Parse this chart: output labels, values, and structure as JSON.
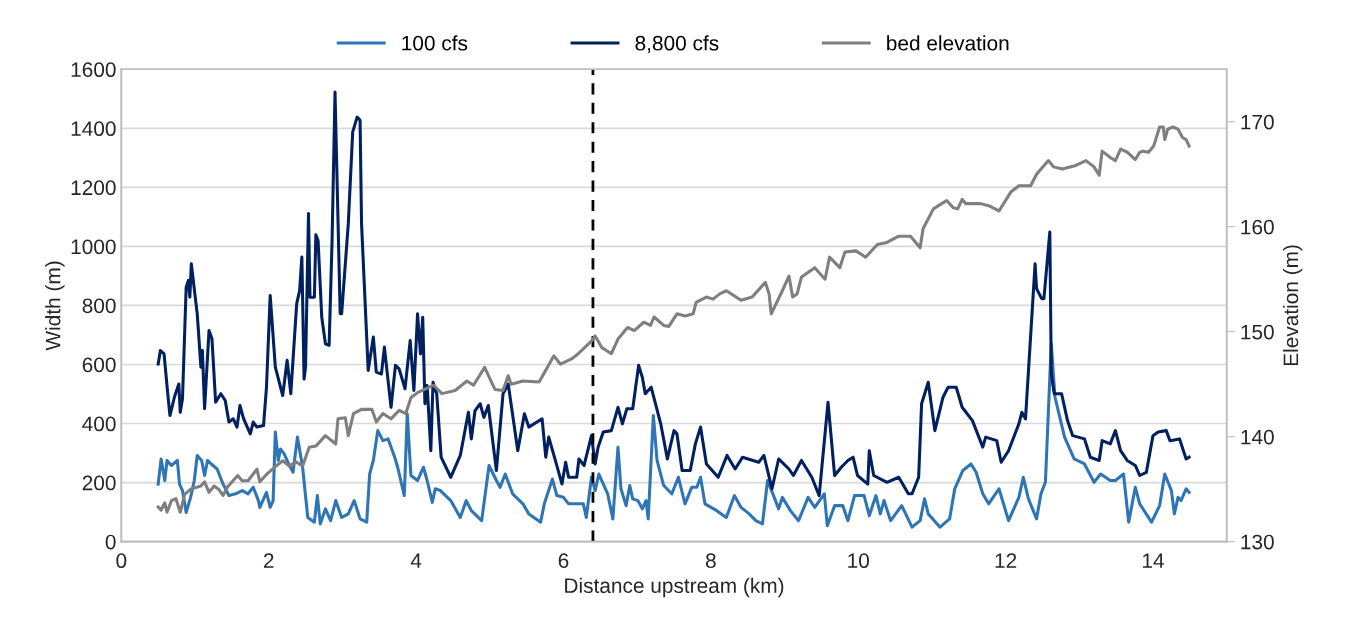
{
  "chart_data": {
    "type": "line",
    "xlabel": "Distance upstream (km)",
    "ylabel": "Width (m)",
    "y2label": "Elevation (m)",
    "xlim": [
      0,
      15
    ],
    "xticks": [
      0,
      2,
      4,
      6,
      8,
      10,
      12,
      14
    ],
    "ylim": [
      0,
      1600
    ],
    "yticks": [
      0,
      200,
      400,
      600,
      800,
      1000,
      1200,
      1400,
      1600
    ],
    "y2lim": [
      130,
      175
    ],
    "y2ticks": [
      130,
      140,
      150,
      160,
      170
    ],
    "grid": "y",
    "legend": "top",
    "line_style": "solid",
    "marker": "none",
    "ref_lines": [
      {
        "axis": "x",
        "value": 6.4,
        "color": "#000000",
        "line_style": "dashed"
      }
    ],
    "series": [
      {
        "name": "100 cfs",
        "color": "#2e75b6",
        "x": [
          0.5,
          0.54,
          0.59,
          0.62,
          0.68,
          0.76,
          0.79,
          0.83,
          0.88,
          0.94,
          0.99,
          1.03,
          1.09,
          1.13,
          1.17,
          1.22,
          1.3,
          1.38,
          1.46,
          1.55,
          1.64,
          1.72,
          1.79,
          1.86,
          1.88,
          1.97,
          2.02,
          2.06,
          2.09,
          2.13,
          2.16,
          2.21,
          2.26,
          2.33,
          2.39,
          2.46,
          2.53,
          2.62,
          2.66,
          2.7,
          2.77,
          2.84,
          2.91,
          2.99,
          3.08,
          3.16,
          3.24,
          3.33,
          3.37,
          3.42,
          3.48,
          3.55,
          3.62,
          3.71,
          3.75,
          3.84,
          3.88,
          3.93,
          4.02,
          4.1,
          4.15,
          4.22,
          4.26,
          4.33,
          4.47,
          4.6,
          4.68,
          4.75,
          4.89,
          4.99,
          5.09,
          5.14,
          5.21,
          5.31,
          5.45,
          5.53,
          5.69,
          5.74,
          5.85,
          5.91,
          6.0,
          6.07,
          6.18,
          6.27,
          6.31,
          6.38,
          6.43,
          6.48,
          6.6,
          6.67,
          6.74,
          6.78,
          6.85,
          6.9,
          6.94,
          7.01,
          7.07,
          7.12,
          7.15,
          7.22,
          7.27,
          7.36,
          7.47,
          7.56,
          7.65,
          7.74,
          7.81,
          7.86,
          7.92,
          8.08,
          8.21,
          8.32,
          8.41,
          8.52,
          8.61,
          8.7,
          8.77,
          8.86,
          8.92,
          8.97,
          9.08,
          9.19,
          9.32,
          9.41,
          9.54,
          9.58,
          9.68,
          9.79,
          9.86,
          9.95,
          10.08,
          10.15,
          10.24,
          10.3,
          10.35,
          10.44,
          10.59,
          10.73,
          10.84,
          10.9,
          10.95,
          11.11,
          11.24,
          11.31,
          11.42,
          11.53,
          11.6,
          11.69,
          11.77,
          11.91,
          12.04,
          12.18,
          12.24,
          12.31,
          12.42,
          12.48,
          12.54,
          12.6,
          12.62,
          12.67,
          12.8,
          12.93,
          13.07,
          13.2,
          13.29,
          13.42,
          13.49,
          13.6,
          13.67,
          13.76,
          13.82,
          13.98,
          14.09,
          14.16,
          14.25,
          14.29,
          14.34,
          14.38,
          14.45,
          14.49
        ],
        "values": [
          195,
          280,
          207,
          275,
          258,
          275,
          195,
          173,
          99,
          150,
          207,
          292,
          275,
          224,
          275,
          263,
          246,
          195,
          156,
          162,
          173,
          162,
          184,
          139,
          116,
          167,
          116,
          139,
          371,
          275,
          314,
          297,
          269,
          235,
          354,
          252,
          82,
          66,
          156,
          60,
          111,
          71,
          139,
          82,
          94,
          139,
          77,
          66,
          229,
          275,
          376,
          342,
          348,
          286,
          252,
          156,
          433,
          224,
          207,
          252,
          207,
          133,
          179,
          173,
          139,
          82,
          139,
          105,
          71,
          258,
          207,
          184,
          229,
          162,
          128,
          94,
          66,
          128,
          212,
          156,
          150,
          128,
          128,
          128,
          82,
          218,
          173,
          229,
          162,
          77,
          320,
          179,
          122,
          190,
          145,
          139,
          111,
          139,
          77,
          427,
          275,
          190,
          162,
          218,
          128,
          184,
          184,
          218,
          128,
          105,
          82,
          156,
          116,
          94,
          71,
          60,
          207,
          150,
          111,
          150,
          105,
          71,
          150,
          116,
          162,
          54,
          122,
          122,
          71,
          156,
          156,
          88,
          156,
          94,
          139,
          71,
          122,
          49,
          71,
          145,
          94,
          49,
          77,
          179,
          241,
          263,
          235,
          162,
          128,
          179,
          71,
          150,
          218,
          145,
          77,
          162,
          201,
          557,
          670,
          489,
          354,
          280,
          263,
          201,
          229,
          207,
          207,
          229,
          66,
          184,
          128,
          66,
          122,
          229,
          173,
          94,
          150,
          139,
          179,
          167
        ]
      },
      {
        "name": "8,800 cfs",
        "color": "#002060",
        "x": [
          0.5,
          0.53,
          0.58,
          0.63,
          0.66,
          0.72,
          0.78,
          0.8,
          0.83,
          0.88,
          0.91,
          0.93,
          0.95,
          1.03,
          1.08,
          1.1,
          1.13,
          1.19,
          1.23,
          1.28,
          1.35,
          1.41,
          1.46,
          1.52,
          1.57,
          1.61,
          1.66,
          1.75,
          1.79,
          1.84,
          1.93,
          1.97,
          2.02,
          2.09,
          2.19,
          2.25,
          2.3,
          2.38,
          2.42,
          2.45,
          2.48,
          2.5,
          2.54,
          2.56,
          2.62,
          2.64,
          2.67,
          2.72,
          2.77,
          2.82,
          2.86,
          2.9,
          2.97,
          2.99,
          3.08,
          3.14,
          3.2,
          3.24,
          3.26,
          3.35,
          3.42,
          3.46,
          3.53,
          3.57,
          3.66,
          3.72,
          3.77,
          3.85,
          3.92,
          3.97,
          4.02,
          4.06,
          4.09,
          4.12,
          4.15,
          4.2,
          4.23,
          4.28,
          4.34,
          4.47,
          4.6,
          4.71,
          4.75,
          4.8,
          4.87,
          4.92,
          4.98,
          5.09,
          5.18,
          5.25,
          5.38,
          5.47,
          5.53,
          5.71,
          5.76,
          5.8,
          5.89,
          5.98,
          6.03,
          6.07,
          6.18,
          6.21,
          6.28,
          6.38,
          6.43,
          6.47,
          6.54,
          6.65,
          6.74,
          6.8,
          6.86,
          6.94,
          7.02,
          7.07,
          7.11,
          7.19,
          7.32,
          7.41,
          7.5,
          7.54,
          7.61,
          7.72,
          7.79,
          7.86,
          7.94,
          8.1,
          8.22,
          8.33,
          8.43,
          8.65,
          8.72,
          8.83,
          8.92,
          9.06,
          9.12,
          9.23,
          9.37,
          9.47,
          9.59,
          9.68,
          9.77,
          9.86,
          9.93,
          9.99,
          10.13,
          10.15,
          10.21,
          10.39,
          10.55,
          10.68,
          10.73,
          10.82,
          10.86,
          10.95,
          11.04,
          11.15,
          11.22,
          11.33,
          11.41,
          11.55,
          11.69,
          11.73,
          11.88,
          11.94,
          12.04,
          12.18,
          12.22,
          12.27,
          12.4,
          12.42,
          12.49,
          12.52,
          12.6,
          12.62,
          12.66,
          12.76,
          12.84,
          12.91,
          13.07,
          13.15,
          13.27,
          13.31,
          13.42,
          13.49,
          13.56,
          13.65,
          13.76,
          13.82,
          13.91,
          14.0,
          14.07,
          14.18,
          14.23,
          14.36,
          14.45,
          14.49
        ],
        "values": [
          602,
          647,
          636,
          501,
          427,
          489,
          534,
          438,
          484,
          862,
          885,
          828,
          941,
          772,
          591,
          647,
          450,
          715,
          687,
          472,
          501,
          478,
          405,
          416,
          388,
          461,
          416,
          365,
          405,
          388,
          393,
          523,
          834,
          591,
          495,
          614,
          501,
          806,
          851,
          964,
          551,
          591,
          1111,
          828,
          828,
          1039,
          1020,
          760,
          670,
          665,
          1020,
          1523,
          772,
          772,
          1077,
          1388,
          1438,
          1427,
          1077,
          580,
          693,
          574,
          568,
          659,
          455,
          597,
          585,
          518,
          681,
          512,
          772,
          636,
          760,
          467,
          529,
          308,
          540,
          501,
          286,
          218,
          292,
          438,
          348,
          444,
          467,
          421,
          461,
          241,
          501,
          534,
          308,
          433,
          388,
          416,
          286,
          354,
          275,
          195,
          269,
          218,
          218,
          280,
          258,
          359,
          263,
          320,
          371,
          376,
          455,
          399,
          450,
          450,
          597,
          557,
          501,
          523,
          399,
          280,
          376,
          365,
          241,
          241,
          331,
          388,
          263,
          218,
          292,
          246,
          286,
          269,
          292,
          179,
          280,
          246,
          224,
          275,
          218,
          156,
          472,
          224,
          252,
          275,
          286,
          224,
          195,
          308,
          224,
          201,
          218,
          162,
          162,
          218,
          467,
          540,
          376,
          489,
          523,
          523,
          455,
          410,
          320,
          354,
          342,
          269,
          308,
          399,
          438,
          416,
          941,
          857,
          823,
          823,
          1049,
          568,
          501,
          501,
          410,
          359,
          348,
          286,
          275,
          342,
          331,
          376,
          308,
          275,
          258,
          224,
          235,
          359,
          371,
          376,
          342,
          348,
          280,
          286
        ]
      },
      {
        "name": "bed elevation",
        "color": "#7f7f7f",
        "axis": "y2",
        "x": [
          0.5,
          0.54,
          0.59,
          0.62,
          0.68,
          0.74,
          0.8,
          0.86,
          0.94,
          1.08,
          1.13,
          1.19,
          1.26,
          1.32,
          1.38,
          1.44,
          1.58,
          1.64,
          1.72,
          1.84,
          1.88,
          1.97,
          2.1,
          2.19,
          2.28,
          2.37,
          2.46,
          2.55,
          2.64,
          2.77,
          2.91,
          2.94,
          3.04,
          3.08,
          3.15,
          3.26,
          3.4,
          3.46,
          3.55,
          3.66,
          3.77,
          3.86,
          3.93,
          4.02,
          4.24,
          4.35,
          4.53,
          4.69,
          4.78,
          4.93,
          5.07,
          5.18,
          5.25,
          5.29,
          5.45,
          5.67,
          5.87,
          5.96,
          6.11,
          6.2,
          6.29,
          6.38,
          6.43,
          6.52,
          6.65,
          6.74,
          6.87,
          6.96,
          7.09,
          7.18,
          7.23,
          7.36,
          7.43,
          7.54,
          7.65,
          7.76,
          7.8,
          7.94,
          8.03,
          8.12,
          8.21,
          8.41,
          8.56,
          8.74,
          8.79,
          8.82,
          8.97,
          9.06,
          9.11,
          9.17,
          9.23,
          9.41,
          9.55,
          9.61,
          9.75,
          9.82,
          9.97,
          10.1,
          10.26,
          10.39,
          10.55,
          10.71,
          10.84,
          10.88,
          11.02,
          11.2,
          11.29,
          11.35,
          11.41,
          11.46,
          11.66,
          11.77,
          11.91,
          12.07,
          12.18,
          12.34,
          12.42,
          12.58,
          12.65,
          12.77,
          12.94,
          13.09,
          13.2,
          13.27,
          13.31,
          13.42,
          13.49,
          13.56,
          13.65,
          13.76,
          13.82,
          13.87,
          13.94,
          14.01,
          14.09,
          14.14,
          14.16,
          14.2,
          14.27,
          14.34,
          14.4,
          14.45,
          14.49
        ],
        "values": [
          133.3,
          133.0,
          133.7,
          132.8,
          133.9,
          134.1,
          132.8,
          134.5,
          135.0,
          135.3,
          135.7,
          134.7,
          135.3,
          135.0,
          134.4,
          135.2,
          136.3,
          135.8,
          135.8,
          136.9,
          135.7,
          136.4,
          137.2,
          137.7,
          137.2,
          137.6,
          137.2,
          139.0,
          139.1,
          140.1,
          139.3,
          141.7,
          141.8,
          140.1,
          142.2,
          142.6,
          142.6,
          141.4,
          142.2,
          141.7,
          142.5,
          142.2,
          143.7,
          144.2,
          144.9,
          144.1,
          144.4,
          145.3,
          144.9,
          146.6,
          144.5,
          144.4,
          145.8,
          145.0,
          145.3,
          145.2,
          147.7,
          146.9,
          147.4,
          147.9,
          148.5,
          149.1,
          149.6,
          148.5,
          147.9,
          149.3,
          150.4,
          150.1,
          150.9,
          150.6,
          151.4,
          150.6,
          150.5,
          151.7,
          151.5,
          151.7,
          152.8,
          153.3,
          153.1,
          153.6,
          153.9,
          153.0,
          153.3,
          154.7,
          153.6,
          151.7,
          153.9,
          155.3,
          153.3,
          153.6,
          155.2,
          156.1,
          155.0,
          157.1,
          156.1,
          157.6,
          157.7,
          157.1,
          158.3,
          158.5,
          159.1,
          159.1,
          158.0,
          159.8,
          161.7,
          162.5,
          161.8,
          161.7,
          162.6,
          162.2,
          162.2,
          162.0,
          161.5,
          163.3,
          163.9,
          163.9,
          165.0,
          166.3,
          165.7,
          165.5,
          165.8,
          166.3,
          165.7,
          164.9,
          167.2,
          166.6,
          166.3,
          167.4,
          167.1,
          166.4,
          167.1,
          167.2,
          167.1,
          167.7,
          169.5,
          169.5,
          168.3,
          169.3,
          169.5,
          169.3,
          168.5,
          168.3,
          167.7
        ]
      }
    ]
  }
}
